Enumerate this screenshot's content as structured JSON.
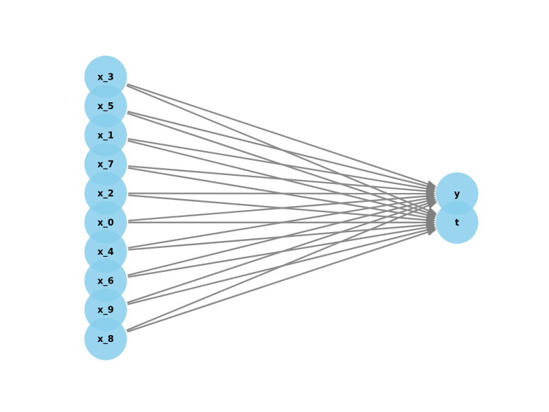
{
  "graph": {
    "source_nodes": [
      {
        "id": "x_3",
        "label": "x_3"
      },
      {
        "id": "x_5",
        "label": "x_5"
      },
      {
        "id": "x_1",
        "label": "x_1"
      },
      {
        "id": "x_7",
        "label": "x_7"
      },
      {
        "id": "x_2",
        "label": "x_2"
      },
      {
        "id": "x_0",
        "label": "x_0"
      },
      {
        "id": "x_4",
        "label": "x_4"
      },
      {
        "id": "x_6",
        "label": "x_6"
      },
      {
        "id": "x_9",
        "label": "x_9"
      },
      {
        "id": "x_8",
        "label": "x_8"
      }
    ],
    "target_nodes": [
      {
        "id": "y",
        "label": "y"
      },
      {
        "id": "t",
        "label": "t"
      }
    ],
    "edges_connect_every_source_to_every_target": true,
    "colors": {
      "node_fill": "#87ceeb",
      "edge": "#8c8c8c",
      "arrow": "#808080",
      "label": "#000000"
    }
  }
}
